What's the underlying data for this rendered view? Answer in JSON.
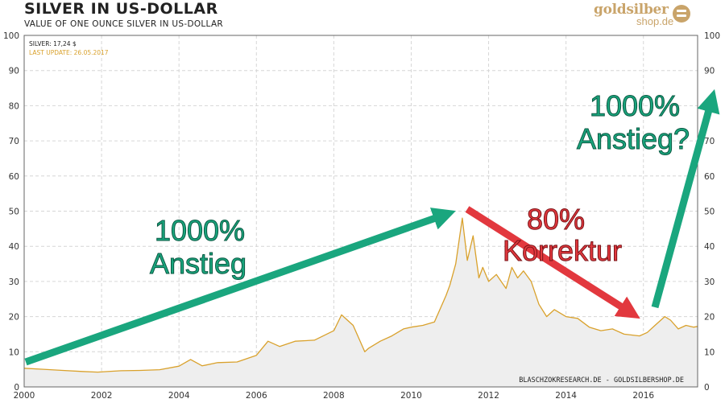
{
  "title": "SILVER IN US-DOLLAR",
  "subtitle": "VALUE OF ONE OUNCE SILVER IN US-DOLLAR",
  "logo": {
    "name": "goldsilber",
    "domain": "shop.de",
    "icon": "coin-stack-icon"
  },
  "legend": {
    "series_label": "SILVER: 17,24 $",
    "update": "LAST UPDATE: 26.05.2017"
  },
  "credit": "BLASCHZOKRESEARCH.DE - GOLDSILBERSHOP.DE",
  "colors": {
    "line": "#d9a12c",
    "area": "#eeeeee",
    "grid": "#d6d6d6",
    "arrow_up": "#1aa67e",
    "arrow_down": "#e2383e",
    "update_text": "#d9a12c"
  },
  "annotations": {
    "left_line1": "1000%",
    "left_line2": "Anstieg",
    "mid_line1": "80%",
    "mid_line2": "Korrektur",
    "right_line1": "1000%",
    "right_line2": "Anstieg?"
  },
  "chart_data": {
    "type": "area",
    "title": "SILVER IN US-DOLLAR",
    "subtitle": "VALUE OF ONE OUNCE SILVER IN US-DOLLAR",
    "xlabel": "",
    "ylabel": "",
    "xlim": [
      2000,
      2017.4
    ],
    "ylim": [
      0,
      100
    ],
    "x_ticks": [
      2000,
      2002,
      2004,
      2006,
      2008,
      2010,
      2012,
      2014,
      2016
    ],
    "x_tick_labels": [
      "2000",
      "2002",
      "2004",
      "2006",
      "2008",
      "2010",
      "2012",
      "2014",
      "2016"
    ],
    "y_ticks": [
      0,
      10,
      20,
      30,
      40,
      50,
      60,
      70,
      80,
      90,
      100
    ],
    "y_tick_labels": [
      "0",
      "10",
      "20",
      "30",
      "40",
      "50",
      "60",
      "70",
      "80",
      "90",
      "100"
    ],
    "y_axis_both_sides": true,
    "grid": true,
    "series": [
      {
        "name": "SILVER",
        "x": [
          2000.0,
          2000.5,
          2001.0,
          2001.5,
          2001.9,
          2002.5,
          2003.0,
          2003.5,
          2004.0,
          2004.3,
          2004.6,
          2005.0,
          2005.5,
          2006.0,
          2006.3,
          2006.6,
          2007.0,
          2007.5,
          2008.0,
          2008.2,
          2008.5,
          2008.8,
          2008.9,
          2009.2,
          2009.5,
          2009.8,
          2010.0,
          2010.3,
          2010.6,
          2010.9,
          2011.0,
          2011.15,
          2011.32,
          2011.45,
          2011.6,
          2011.75,
          2011.85,
          2012.0,
          2012.2,
          2012.45,
          2012.6,
          2012.75,
          2012.9,
          2013.1,
          2013.3,
          2013.5,
          2013.7,
          2014.0,
          2014.3,
          2014.6,
          2014.9,
          2015.2,
          2015.5,
          2015.9,
          2016.1,
          2016.3,
          2016.55,
          2016.7,
          2016.9,
          2017.1,
          2017.3,
          2017.4
        ],
        "y": [
          5.3,
          5.0,
          4.7,
          4.4,
          4.2,
          4.6,
          4.7,
          4.9,
          5.9,
          7.8,
          6.0,
          6.9,
          7.1,
          9.0,
          13.0,
          11.5,
          13.0,
          13.3,
          16.0,
          20.5,
          17.5,
          10.0,
          11.0,
          13.0,
          14.5,
          16.5,
          17.0,
          17.5,
          18.5,
          26.0,
          29.0,
          35.0,
          48.0,
          36.0,
          43.0,
          31.0,
          34.0,
          30.0,
          32.0,
          28.0,
          34.0,
          31.0,
          33.0,
          30.0,
          23.5,
          20.0,
          22.0,
          20.0,
          19.5,
          17.0,
          16.0,
          16.5,
          15.0,
          14.5,
          15.5,
          17.5,
          20.0,
          19.0,
          16.5,
          17.5,
          17.0,
          17.2
        ]
      }
    ]
  }
}
